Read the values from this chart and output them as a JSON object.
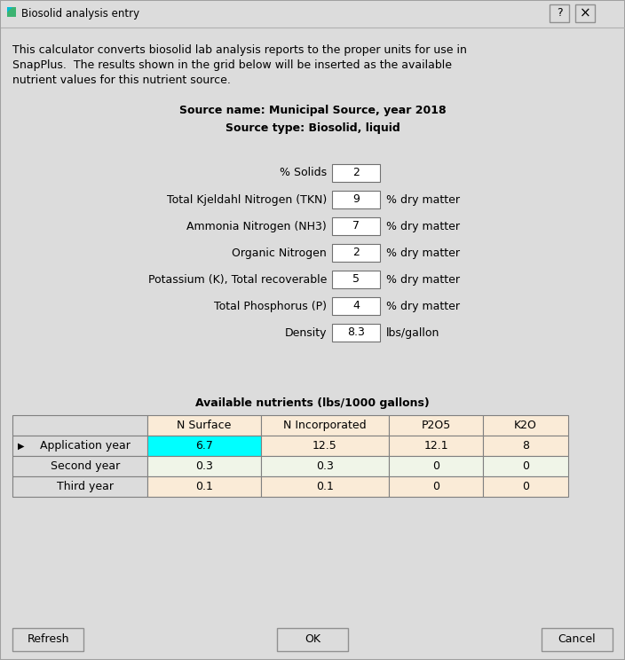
{
  "title": "Biosolid analysis entry",
  "bg_color": "#dcdcdc",
  "description_lines": [
    "This calculator converts biosolid lab analysis reports to the proper units for use in",
    "SnapPlus.  The results shown in the grid below will be inserted as the available",
    "nutrient values for this nutrient source."
  ],
  "source_name": "Source name: Municipal Source, year 2018",
  "source_type": "Source type: Biosolid, liquid",
  "fields": [
    {
      "label": "% Solids",
      "value": "2",
      "unit": ""
    },
    {
      "label": "Total Kjeldahl Nitrogen (TKN)",
      "value": "9",
      "unit": "% dry matter"
    },
    {
      "label": "Ammonia Nitrogen (NH3)",
      "value": "7",
      "unit": "% dry matter"
    },
    {
      "label": "Organic Nitrogen",
      "value": "2",
      "unit": "% dry matter"
    },
    {
      "label": "Potassium (K), Total recoverable",
      "value": "5",
      "unit": "% dry matter"
    },
    {
      "label": "Total Phosphorus (P)",
      "value": "4",
      "unit": "% dry matter"
    },
    {
      "label": "Density",
      "value": "8.3",
      "unit": "lbs/gallon"
    }
  ],
  "table_title": "Available nutrients (lbs/1000 gallons)",
  "table_headers": [
    "",
    "N Surface",
    "N Incorporated",
    "P2O5",
    "K2O"
  ],
  "table_rows": [
    [
      "Application year",
      "6.7",
      "12.5",
      "12.1",
      "8"
    ],
    [
      "Second year",
      "0.3",
      "0.3",
      "0",
      "0"
    ],
    [
      "Third year",
      "0.1",
      "0.1",
      "0",
      "0"
    ]
  ],
  "table_row_selected": 0,
  "col_header_bg": "#faebd7",
  "row0_bg": "#faebd7",
  "row1_bg": "#f0f5e8",
  "row2_bg": "#faebd7",
  "cell_bg_highlight": "#00ffff",
  "row_label_bg": "#dcdcdc",
  "buttons": [
    "Refresh",
    "OK",
    "Cancel"
  ],
  "button_bg": "#dcdcdc",
  "input_bg": "#ffffff",
  "border_color": "#808080",
  "text_color": "#000000",
  "window_bg": "#dcdcdc",
  "titlebar_bg": "#dcdcdc",
  "icon_green": "#3cb371",
  "icon_cyan": "#00bcd4"
}
